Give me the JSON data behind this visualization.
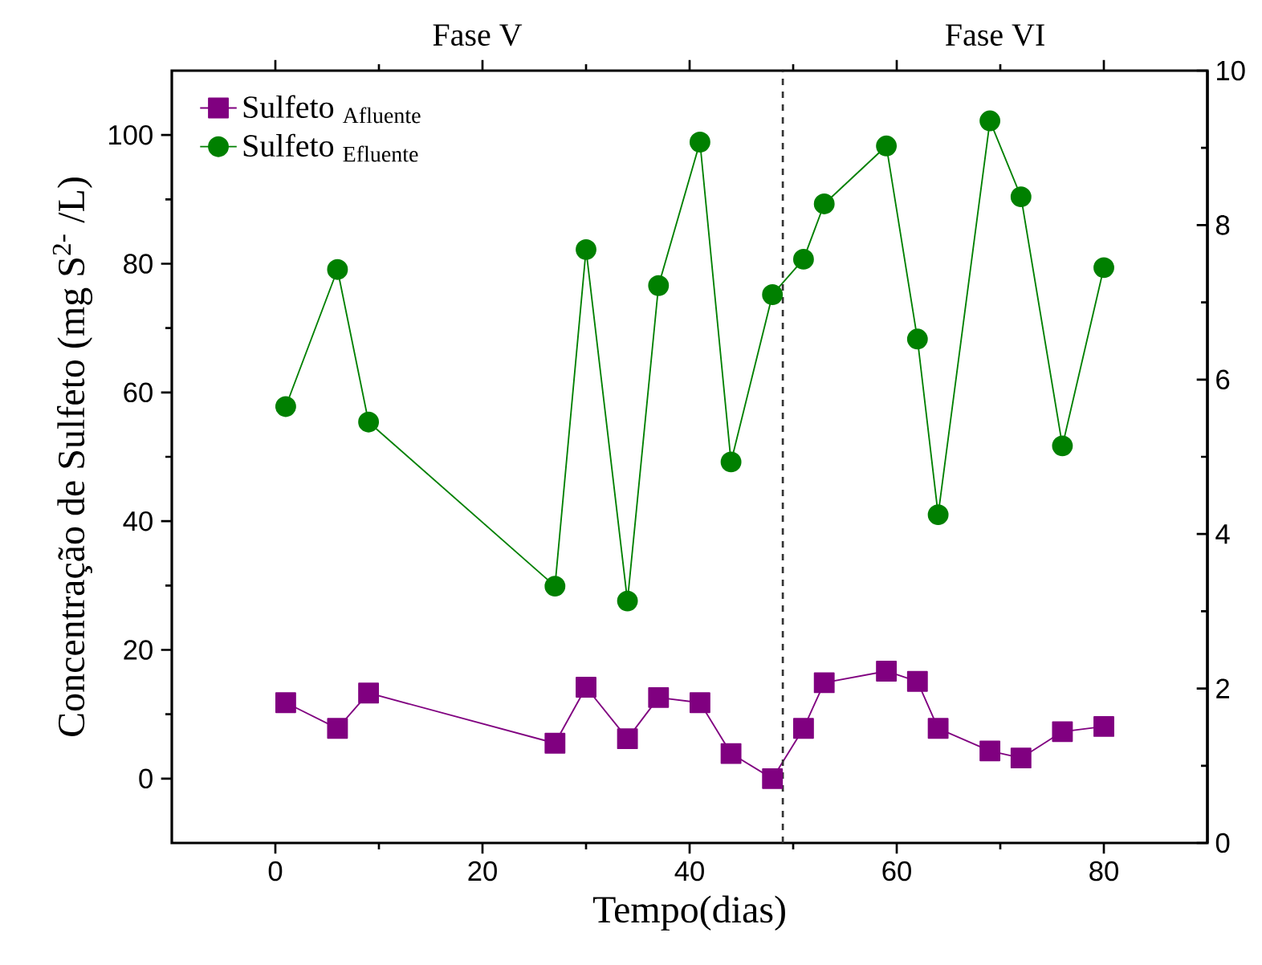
{
  "chart_data": {
    "type": "line",
    "xlabel": "Tempo(dias)",
    "ylabel": "Concentração de Sulfeto (mg S$^{2-}$ /L)",
    "xlim": [
      -10,
      90
    ],
    "xticks": [
      0,
      20,
      40,
      60,
      80
    ],
    "ylim": [
      -10,
      110
    ],
    "yticks": [
      0,
      20,
      40,
      60,
      80,
      100
    ],
    "y2lim": [
      0,
      10
    ],
    "y2ticks": [
      0,
      2,
      4,
      6,
      8,
      10
    ],
    "legend": "top left",
    "grid": false,
    "line_style": "solid",
    "series": [
      {
        "name": "Sulfeto $_{Afluente}$",
        "color": "#800080",
        "marker": "square",
        "x": [
          1,
          6,
          9,
          27,
          30,
          34,
          37,
          41,
          44,
          48,
          51,
          53,
          59,
          62,
          64,
          69,
          72,
          76,
          80
        ],
        "values": [
          11.8,
          7.8,
          13.3,
          5.5,
          14.2,
          6.2,
          12.6,
          11.8,
          3.9,
          0,
          7.8,
          14.9,
          16.7,
          15.1,
          7.8,
          4.3,
          3.2,
          7.3,
          8.1
        ]
      },
      {
        "name": "Sulfeto $_{Efluente}$",
        "color": "#008000",
        "marker": "circle",
        "x": [
          1,
          6,
          9,
          27,
          30,
          34,
          37,
          41,
          44,
          48,
          51,
          53,
          59,
          62,
          64,
          69,
          72,
          76,
          80
        ],
        "values": [
          57.8,
          79.1,
          55.4,
          29.9,
          82.2,
          27.6,
          76.6,
          98.9,
          49.2,
          75.2,
          80.7,
          89.3,
          98.3,
          68.3,
          41,
          102.2,
          90.4,
          51.7,
          79.4
        ]
      }
    ],
    "ref_lines": [
      {
        "axis": "x",
        "value": 49,
        "line_style": "dashed",
        "color": "#333333"
      }
    ],
    "annotations": [
      "Fase V",
      "Fase VI"
    ]
  }
}
